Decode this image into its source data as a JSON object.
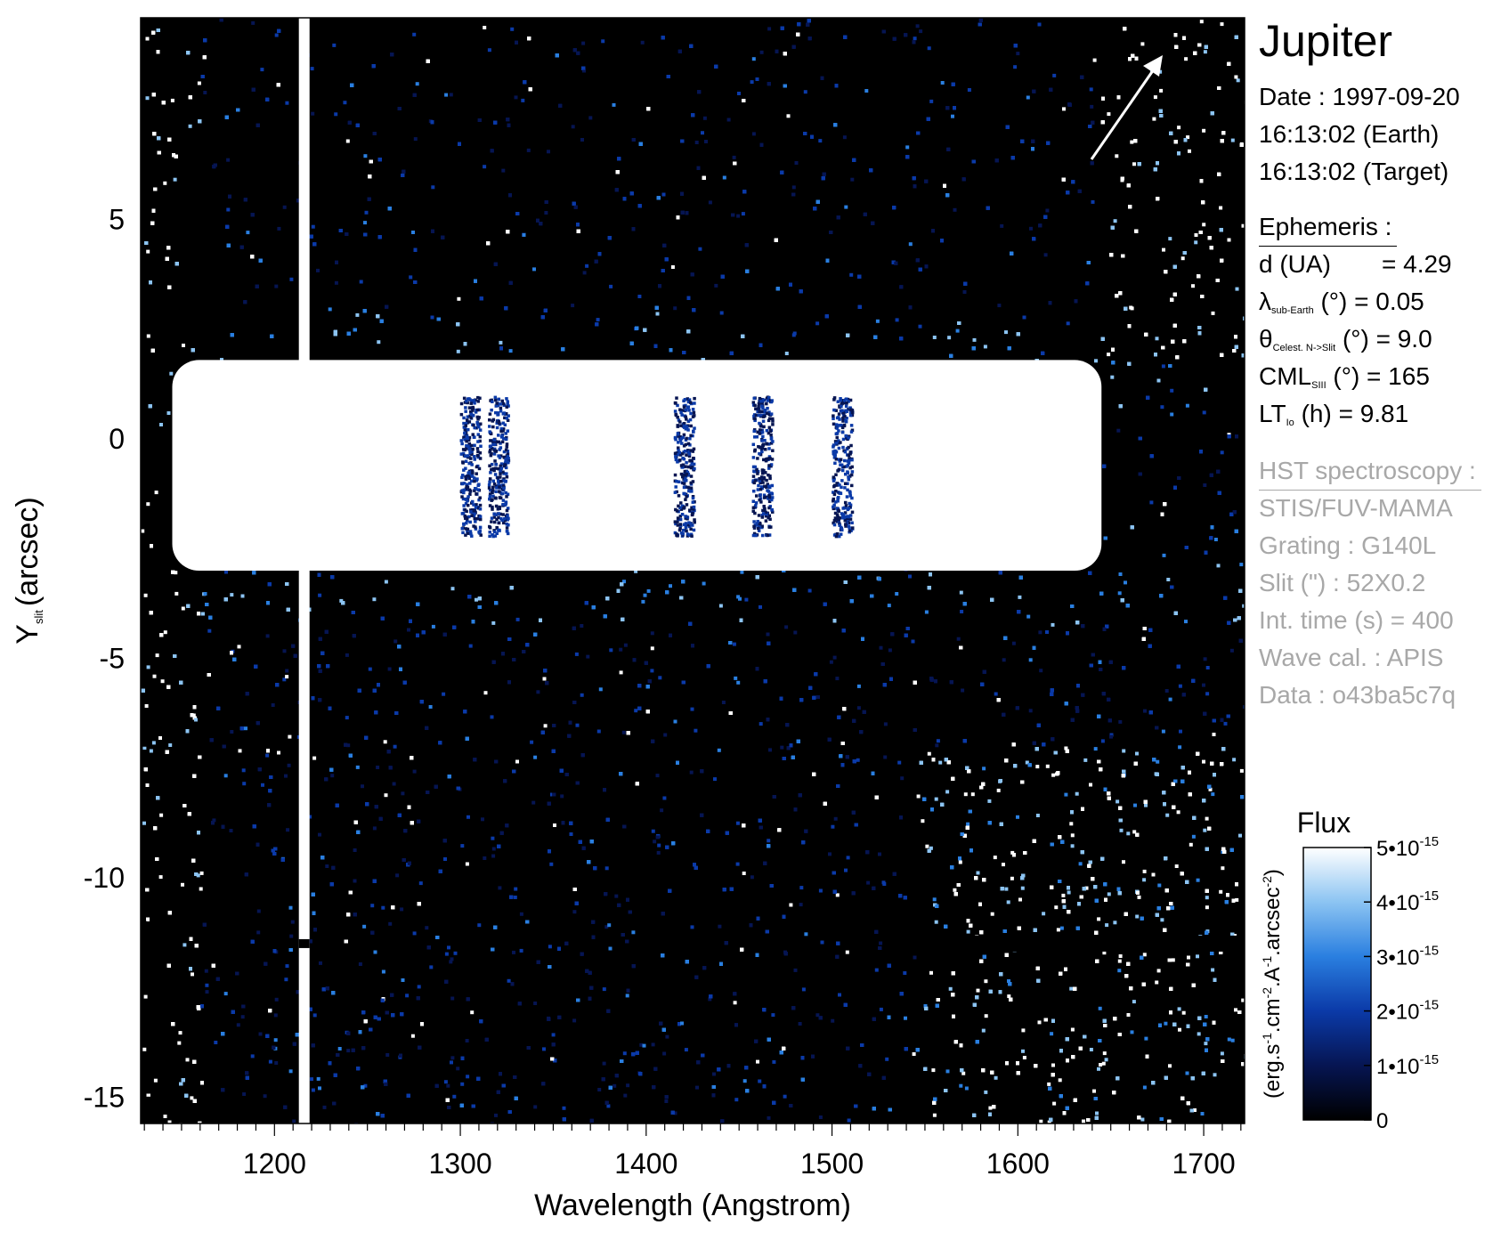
{
  "chart_data": {
    "type": "heatmap",
    "xlabel": "Wavelength (Angstrom)",
    "ylabel_main": "Y",
    "ylabel_sub": "slit",
    "ylabel_unit": "(arcsec)",
    "xlim": [
      1128,
      1722
    ],
    "ylim": [
      -15.6,
      9.6
    ],
    "x_ticks": [
      1200,
      1300,
      1400,
      1500,
      1600,
      1700
    ],
    "x_tick_labels": [
      "1200",
      "1300",
      "1400",
      "1500",
      "1600",
      "1700"
    ],
    "y_ticks": [
      5,
      0,
      -5,
      -10,
      -15
    ],
    "y_tick_labels": [
      "5",
      "0",
      "-5",
      "-10",
      "-15"
    ],
    "features": {
      "lyman_alpha_line_angstrom": 1216,
      "emission_band_y_range_arcsec": [
        -3.0,
        1.8
      ],
      "emission_band_x_range_angstrom": [
        1145,
        1645
      ],
      "dark_row_y_arcsec": -11.5
    },
    "colorbar": {
      "title": "Flux",
      "unit": "(erg.s-1.cm-2.A-1.arcsec-2)",
      "min": 0,
      "max": 5e-15,
      "tick_labels": [
        "5•10",
        "4•10",
        "3•10",
        "2•10",
        "1•10",
        "0"
      ],
      "tick_exponent": "-15",
      "tick_values": [
        5e-15,
        4e-15,
        3e-15,
        2e-15,
        1e-15,
        0
      ],
      "colors": [
        "#000000",
        "#061552",
        "#0b3aa8",
        "#2a7fe0",
        "#8cc4f2",
        "#ffffff"
      ]
    },
    "orientation_arrow": "north-east"
  },
  "info": {
    "target": "Jupiter",
    "date_line": "Date : 1997-09-20",
    "time_earth": "16:13:02 (Earth)",
    "time_target": "16:13:02 (Target)",
    "ephemeris_header": "Ephemeris :",
    "d_label": "d (UA)",
    "d_value": "= 4.29",
    "lambda_sym": "λ",
    "lambda_sub": "sub-Earth",
    "lambda_rest": "(°)  = 0.05",
    "theta_sym": "θ",
    "theta_sub": "Celest. N->Slit",
    "theta_rest": "(°) = 9.0",
    "cml_main": "CML",
    "cml_sub": "SIII",
    "cml_rest": "(°) = 165",
    "lt_main": "LT",
    "lt_sub": "Io",
    "lt_rest": "(h) = 9.81",
    "hst_header": "HST spectroscopy :",
    "instrument": "STIS/FUV-MAMA",
    "grating": "Grating : G140L",
    "slit": "Slit (\") : 52X0.2",
    "int_time": "Int. time (s) = 400",
    "wave_cal": "Wave cal. : APIS",
    "data_id": "Data : o43ba5c7q"
  }
}
